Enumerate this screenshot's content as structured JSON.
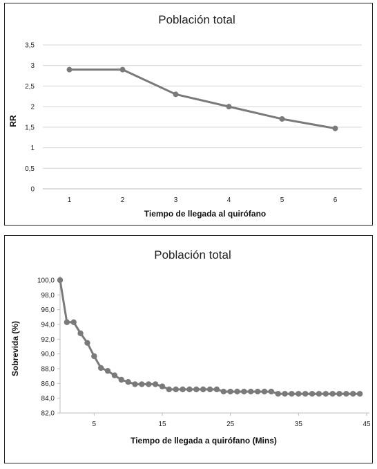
{
  "chart_data": [
    {
      "type": "line",
      "title": "Población total",
      "xlabel": "Tiempo de llegada al quirófano",
      "ylabel": "RR",
      "categories": [
        "1",
        "2",
        "3",
        "4",
        "5",
        "6"
      ],
      "y_tick_labels": [
        "3,5",
        "3",
        "2,5",
        "2",
        "1,5",
        "1",
        "0,5",
        "0"
      ],
      "ylim": [
        0,
        3.5
      ],
      "grid": true,
      "series": [
        {
          "values": [
            2.9,
            2.9,
            2.3,
            2.0,
            1.7,
            1.47
          ]
        }
      ],
      "colors": {
        "line": "#7a7a7a"
      }
    },
    {
      "type": "line",
      "title": "Población total",
      "xlabel": "Tiempo de llegada a quirófano (Mins)",
      "ylabel": "Sobrevida (%)",
      "x_tick_values": [
        5,
        15,
        25,
        35,
        45
      ],
      "y_tick_labels": [
        "100,0",
        "98,0",
        "96,0",
        "94,0",
        "92,0",
        "90,0",
        "88,0",
        "86,0",
        "84,0",
        "82,0"
      ],
      "xlim": [
        0,
        45
      ],
      "ylim": [
        82,
        100
      ],
      "grid": false,
      "series": [
        {
          "x": [
            0,
            1,
            2,
            3,
            4,
            5,
            6,
            7,
            8,
            9,
            10,
            11,
            12,
            13,
            14,
            15,
            16,
            17,
            18,
            19,
            20,
            21,
            22,
            23,
            24,
            25,
            26,
            27,
            28,
            29,
            30,
            31,
            32,
            33,
            34,
            35,
            36,
            37,
            38,
            39,
            40,
            41,
            42,
            43,
            44
          ],
          "y": [
            100.0,
            94.3,
            94.3,
            92.8,
            91.5,
            89.7,
            88.1,
            87.7,
            87.1,
            86.5,
            86.2,
            85.9,
            85.9,
            85.9,
            85.9,
            85.6,
            85.2,
            85.2,
            85.2,
            85.2,
            85.2,
            85.2,
            85.2,
            85.2,
            84.9,
            84.9,
            84.9,
            84.9,
            84.9,
            84.9,
            84.9,
            84.9,
            84.6,
            84.6,
            84.6,
            84.6,
            84.6,
            84.6,
            84.6,
            84.6,
            84.6,
            84.6,
            84.6,
            84.6,
            84.6
          ]
        }
      ],
      "colors": {
        "line": "#7a7a7a"
      }
    }
  ]
}
